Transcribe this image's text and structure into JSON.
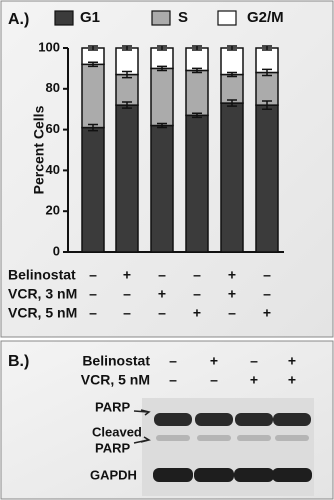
{
  "chart_data": {
    "type": "stacked-bar",
    "panel_label": "A.)",
    "y_label": "Percent Cells",
    "categories": [
      null,
      null,
      null,
      null,
      null,
      null
    ],
    "series": [
      {
        "name": "G1",
        "color": "#3b3b3b",
        "values": [
          61,
          72,
          62,
          67,
          73,
          72
        ],
        "errors": [
          1.5,
          1.5,
          1,
          1,
          1.5,
          2
        ]
      },
      {
        "name": "S",
        "color": "#ababab",
        "values": [
          31,
          15,
          28,
          22,
          14,
          16
        ],
        "errors": [
          1,
          1.5,
          1,
          1,
          1,
          1.5
        ]
      },
      {
        "name": "G2/M",
        "color": "#ffffff",
        "values": [
          8,
          13,
          10,
          11,
          13,
          12
        ],
        "errors": [
          1,
          1,
          1,
          1,
          1,
          1
        ]
      }
    ],
    "ylim": [
      0,
      100
    ],
    "yticks": [
      0,
      20,
      40,
      60,
      80,
      100
    ],
    "treatments": [
      {
        "name": "Belinostat",
        "signs": [
          "–",
          "+",
          "–",
          "–",
          "+",
          "–"
        ]
      },
      {
        "name": "VCR, 3 nM",
        "signs": [
          "–",
          "–",
          "+",
          "–",
          "+",
          "–"
        ]
      },
      {
        "name": "VCR, 5 nM",
        "signs": [
          "–",
          "–",
          "–",
          "+",
          "–",
          "+"
        ]
      }
    ]
  },
  "blot": {
    "panel_label": "B.)",
    "treatments": [
      {
        "name": "Belinostat",
        "signs": [
          "–",
          "+",
          "–",
          "+"
        ]
      },
      {
        "name": "VCR, 5 nM",
        "signs": [
          "–",
          "–",
          "+",
          "+"
        ]
      }
    ],
    "bands": [
      "PARP",
      [
        "Cleaved",
        "PARP"
      ],
      "GAPDH"
    ]
  }
}
